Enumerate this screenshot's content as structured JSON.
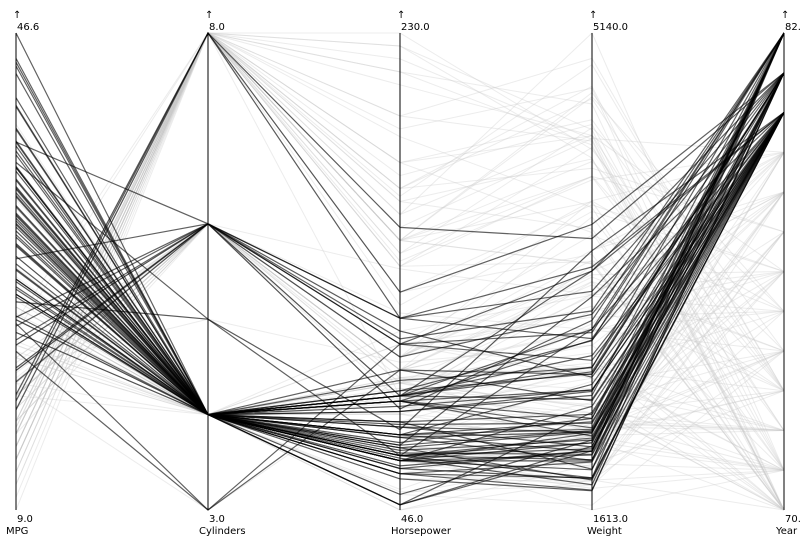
{
  "chart_data": {
    "type": "parallel-coordinates",
    "axes": [
      {
        "name": "MPG",
        "min": 9.0,
        "max": 46.6,
        "min_label": "9.0",
        "max_label": "46.6",
        "arrow": "↑"
      },
      {
        "name": "Cylinders",
        "min": 3.0,
        "max": 8.0,
        "min_label": "3.0",
        "max_label": "8.0",
        "arrow": "↑"
      },
      {
        "name": "Horsepower",
        "min": 46.0,
        "max": 230.0,
        "min_label": "46.0",
        "max_label": "230.0",
        "arrow": "↑"
      },
      {
        "name": "Weight",
        "min": 1613.0,
        "max": 5140.0,
        "min_label": "1613.0",
        "max_label": "5140.0",
        "arrow": "↑"
      },
      {
        "name": "Year",
        "min": 70,
        "max": 82,
        "min_label": "70.",
        "max_label": "82.",
        "arrow": "↑"
      }
    ],
    "highlight_color": "#000000",
    "context_color": "#c8c8c8",
    "highlighted": [
      [
        44.0,
        4,
        52,
        2130,
        82
      ],
      [
        38.0,
        4,
        67,
        2110,
        82
      ],
      [
        36.0,
        4,
        74,
        1980,
        82
      ],
      [
        34.0,
        4,
        70,
        2190,
        82
      ],
      [
        32.0,
        4,
        60,
        1850,
        82
      ],
      [
        31.0,
        4,
        88,
        2290,
        82
      ],
      [
        28.0,
        4,
        84,
        2460,
        82
      ],
      [
        27.0,
        4,
        90,
        2950,
        82
      ],
      [
        26.0,
        4,
        96,
        2665,
        82
      ],
      [
        24.0,
        4,
        92,
        2865,
        82
      ],
      [
        22.0,
        6,
        110,
        2925,
        82
      ],
      [
        20.0,
        6,
        112,
        3085,
        82
      ],
      [
        38.0,
        6,
        85,
        3015,
        82
      ],
      [
        34.5,
        4,
        78,
        2080,
        82
      ],
      [
        29.0,
        4,
        65,
        1910,
        82
      ],
      [
        37.0,
        4,
        68,
        2025,
        82
      ],
      [
        31.5,
        4,
        75,
        2045,
        82
      ],
      [
        33.0,
        4,
        88,
        2220,
        82
      ],
      [
        41.5,
        4,
        48,
        2050,
        82
      ],
      [
        30.5,
        4,
        63,
        2051,
        82
      ],
      [
        46.6,
        4,
        65,
        2110,
        81
      ],
      [
        40.8,
        4,
        65,
        2180,
        81
      ],
      [
        39.1,
        4,
        58,
        1755,
        81
      ],
      [
        37.7,
        4,
        62,
        2050,
        81
      ],
      [
        35.1,
        4,
        60,
        1760,
        81
      ],
      [
        34.4,
        4,
        65,
        1975,
        81
      ],
      [
        32.9,
        4,
        100,
        2615,
        81
      ],
      [
        31.6,
        4,
        74,
        2190,
        81
      ],
      [
        30.0,
        4,
        67,
        1985,
        81
      ],
      [
        28.4,
        4,
        90,
        2670,
        81
      ],
      [
        27.2,
        4,
        84,
        2490,
        81
      ],
      [
        26.6,
        4,
        90,
        2635,
        81
      ],
      [
        25.8,
        4,
        92,
        2620,
        81
      ],
      [
        24.2,
        6,
        120,
        3230,
        81
      ],
      [
        23.5,
        6,
        110,
        3380,
        81
      ],
      [
        22.4,
        6,
        105,
        3060,
        81
      ],
      [
        20.2,
        6,
        120,
        2880,
        81
      ],
      [
        17.6,
        8,
        130,
        3725,
        81
      ],
      [
        16.9,
        8,
        155,
        3620,
        81
      ],
      [
        33.7,
        4,
        75,
        2210,
        81
      ],
      [
        32.4,
        4,
        72,
        2290,
        81
      ],
      [
        36.1,
        4,
        66,
        1800,
        81
      ],
      [
        44.3,
        4,
        48,
        2085,
        80
      ],
      [
        43.4,
        4,
        48,
        2335,
        80
      ],
      [
        44.6,
        4,
        67,
        1850,
        80
      ],
      [
        40.9,
        4,
        70,
        1835,
        80
      ],
      [
        37.3,
        4,
        69,
        2130,
        80
      ],
      [
        36.4,
        5,
        67,
        2950,
        80
      ],
      [
        35.7,
        4,
        80,
        1915,
        80
      ],
      [
        34.3,
        4,
        78,
        2188,
        80
      ],
      [
        33.8,
        4,
        67,
        2145,
        80
      ],
      [
        32.3,
        4,
        67,
        2065,
        80
      ],
      [
        31.8,
        4,
        65,
        2020,
        80
      ],
      [
        30.7,
        4,
        71,
        2200,
        80
      ],
      [
        29.8,
        4,
        62,
        1845,
        80
      ],
      [
        28.8,
        6,
        115,
        2595,
        80
      ],
      [
        27.9,
        4,
        80,
        2320,
        80
      ],
      [
        26.4,
        4,
        88,
        2870,
        80
      ],
      [
        25.4,
        5,
        77,
        3530,
        80
      ],
      [
        24.3,
        4,
        90,
        2430,
        80
      ],
      [
        23.7,
        3,
        100,
        2420,
        80
      ],
      [
        23.0,
        4,
        90,
        2755,
        80
      ],
      [
        21.5,
        3,
        110,
        2720,
        80
      ],
      [
        19.1,
        6,
        90,
        3381,
        80
      ],
      [
        32.2,
        4,
        75,
        2265,
        80
      ],
      [
        29.9,
        4,
        65,
        2380,
        80
      ],
      [
        27.2,
        4,
        71,
        3190,
        80
      ],
      [
        38.1,
        4,
        60,
        1968,
        80
      ],
      [
        35.0,
        4,
        88,
        2500,
        80
      ],
      [
        31.3,
        4,
        75,
        2542,
        80
      ],
      [
        39.0,
        4,
        86,
        2500,
        80
      ],
      [
        18.1,
        8,
        120,
        3410,
        80
      ],
      [
        26.0,
        4,
        79,
        2255,
        80
      ],
      [
        36.0,
        4,
        88,
        2160,
        80
      ]
    ],
    "context": [
      [
        18,
        8,
        130,
        3504,
        70
      ],
      [
        15,
        8,
        165,
        3693,
        70
      ],
      [
        18,
        8,
        150,
        3436,
        70
      ],
      [
        16,
        8,
        150,
        3433,
        70
      ],
      [
        17,
        8,
        140,
        3449,
        70
      ],
      [
        15,
        8,
        198,
        4341,
        70
      ],
      [
        14,
        8,
        220,
        4354,
        70
      ],
      [
        14,
        8,
        215,
        4312,
        70
      ],
      [
        14,
        8,
        225,
        4425,
        70
      ],
      [
        15,
        8,
        190,
        3850,
        70
      ],
      [
        24,
        4,
        95,
        2372,
        70
      ],
      [
        22,
        6,
        95,
        2833,
        70
      ],
      [
        18,
        6,
        97,
        2774,
        70
      ],
      [
        21,
        6,
        85,
        2587,
        70
      ],
      [
        27,
        4,
        88,
        2130,
        70
      ],
      [
        26,
        4,
        46,
        1835,
        70
      ],
      [
        25,
        4,
        87,
        2672,
        70
      ],
      [
        24,
        4,
        90,
        2430,
        70
      ],
      [
        25,
        4,
        95,
        2375,
        70
      ],
      [
        10,
        8,
        215,
        4615,
        70
      ],
      [
        9,
        8,
        193,
        4732,
        70
      ],
      [
        11,
        8,
        180,
        3664,
        70
      ],
      [
        13,
        8,
        170,
        4746,
        71
      ],
      [
        12,
        8,
        160,
        5140,
        71
      ],
      [
        14,
        8,
        165,
        4209,
        71
      ],
      [
        19,
        6,
        100,
        2634,
        71
      ],
      [
        18,
        6,
        88,
        3302,
        71
      ],
      [
        28,
        4,
        90,
        2123,
        71
      ],
      [
        30,
        4,
        70,
        2074,
        71
      ],
      [
        31,
        4,
        65,
        1773,
        71
      ],
      [
        35,
        4,
        69,
        1613,
        71
      ],
      [
        27,
        4,
        60,
        1834,
        71
      ],
      [
        26,
        4,
        70,
        1955,
        71
      ],
      [
        25,
        4,
        86,
        2278,
        71
      ],
      [
        23,
        4,
        86,
        2158,
        71
      ],
      [
        20,
        6,
        90,
        2648,
        71
      ],
      [
        15,
        8,
        150,
        3892,
        71
      ],
      [
        16,
        6,
        100,
        3781,
        71
      ],
      [
        13,
        8,
        175,
        4464,
        71
      ],
      [
        22,
        4,
        72,
        2408,
        71
      ],
      [
        13,
        8,
        140,
        4294,
        72
      ],
      [
        14,
        8,
        150,
        4077,
        72
      ],
      [
        13,
        8,
        160,
        4385,
        72
      ],
      [
        24,
        4,
        95,
        2228,
        72
      ],
      [
        22,
        4,
        80,
        2164,
        72
      ],
      [
        21,
        4,
        110,
        2587,
        72
      ],
      [
        28,
        4,
        92,
        2288,
        72
      ],
      [
        26,
        4,
        95,
        2700,
        72
      ],
      [
        24,
        4,
        97,
        2506,
        72
      ],
      [
        19,
        3,
        97,
        2330,
        72
      ],
      [
        18,
        4,
        90,
        2264,
        72
      ],
      [
        23,
        4,
        54,
        2254,
        72
      ],
      [
        12,
        8,
        167,
        4906,
        73
      ],
      [
        13,
        8,
        180,
        4499,
        73
      ],
      [
        14,
        8,
        170,
        4654,
        73
      ],
      [
        15,
        8,
        145,
        4082,
        73
      ],
      [
        18,
        6,
        105,
        3121,
        73
      ],
      [
        16,
        6,
        100,
        3278,
        73
      ],
      [
        20,
        6,
        105,
        3459,
        73
      ],
      [
        21,
        4,
        90,
        2327,
        73
      ],
      [
        26,
        4,
        46,
        1950,
        73
      ],
      [
        29,
        4,
        75,
        2171,
        73
      ],
      [
        19,
        4,
        110,
        2660,
        73
      ],
      [
        24,
        4,
        75,
        2158,
        73
      ],
      [
        31,
        4,
        52,
        1649,
        74
      ],
      [
        32,
        4,
        65,
        1836,
        74
      ],
      [
        28,
        4,
        75,
        2219,
        74
      ],
      [
        24,
        4,
        96,
        2189,
        74
      ],
      [
        26,
        4,
        93,
        2391,
        74
      ],
      [
        19,
        6,
        100,
        3302,
        74
      ],
      [
        16,
        8,
        150,
        4190,
        74
      ],
      [
        14,
        8,
        150,
        4699,
        74
      ],
      [
        15,
        6,
        100,
        3336,
        74
      ],
      [
        25,
        4,
        75,
        2542,
        74
      ],
      [
        16,
        6,
        105,
        3897,
        75
      ],
      [
        18,
        6,
        110,
        3645,
        75
      ],
      [
        15,
        8,
        145,
        4440,
        75
      ],
      [
        13,
        8,
        150,
        4668,
        75
      ],
      [
        29,
        4,
        83,
        2219,
        75
      ],
      [
        33,
        4,
        53,
        1795,
        75
      ],
      [
        23,
        4,
        83,
        2639,
        75
      ],
      [
        22,
        6,
        100,
        2945,
        75
      ],
      [
        20,
        6,
        110,
        3039,
        75
      ],
      [
        17,
        6,
        95,
        3193,
        75
      ],
      [
        15,
        8,
        180,
        4380,
        76
      ],
      [
        16,
        8,
        120,
        3820,
        76
      ],
      [
        29,
        4,
        62,
        1845,
        76
      ],
      [
        24.5,
        4,
        60,
        2164,
        76
      ],
      [
        29,
        4,
        70,
        1937,
        76
      ],
      [
        26,
        4,
        79,
        2255,
        76
      ],
      [
        26.5,
        4,
        72,
        2565,
        76
      ],
      [
        20,
        6,
        90,
        3085,
        76
      ],
      [
        18,
        6,
        115,
        3202,
        76
      ],
      [
        22,
        6,
        105,
        3353,
        76
      ],
      [
        13,
        8,
        130,
        3870,
        76
      ],
      [
        31.5,
        4,
        68,
        2045,
        77
      ],
      [
        30,
        4,
        80,
        2155,
        77
      ],
      [
        36,
        4,
        58,
        1825,
        77
      ],
      [
        25.5,
        4,
        89,
        2755,
        77
      ],
      [
        33.5,
        4,
        83,
        2075,
        77
      ],
      [
        17.5,
        8,
        140,
        4080,
        77
      ],
      [
        15.5,
        8,
        170,
        4140,
        77
      ],
      [
        19.4,
        6,
        90,
        3210,
        78
      ],
      [
        20.2,
        6,
        85,
        2965,
        78
      ],
      [
        19.2,
        6,
        105,
        3535,
        78
      ],
      [
        20.6,
        6,
        105,
        3380,
        78
      ],
      [
        30,
        4,
        68,
        2155,
        78
      ],
      [
        30.5,
        4,
        63,
        2051,
        78
      ],
      [
        32.8,
        4,
        52,
        1985,
        78
      ],
      [
        39.4,
        4,
        70,
        2070,
        78
      ],
      [
        36.1,
        4,
        66,
        1800,
        78
      ],
      [
        18.1,
        6,
        139,
        3205,
        78
      ],
      [
        21.5,
        4,
        115,
        2600,
        78
      ],
      [
        31.9,
        4,
        71,
        1925,
        79
      ],
      [
        34.1,
        4,
        65,
        1975,
        79
      ],
      [
        35.7,
        4,
        80,
        1915,
        79
      ],
      [
        27.4,
        4,
        80,
        2670,
        79
      ],
      [
        25.4,
        5,
        77,
        3530,
        79
      ],
      [
        23.0,
        8,
        125,
        3900,
        79
      ],
      [
        27.2,
        4,
        71,
        3190,
        79
      ],
      [
        23.9,
        8,
        90,
        3420,
        79
      ],
      [
        34.2,
        4,
        70,
        2200,
        79
      ],
      [
        16.9,
        8,
        155,
        4360,
        79
      ],
      [
        15.5,
        8,
        142,
        4054,
        79
      ],
      [
        19.8,
        6,
        85,
        2990,
        79
      ],
      [
        22.3,
        4,
        88,
        2890,
        79
      ],
      [
        20.3,
        5,
        103,
        2830,
        78
      ],
      [
        28.1,
        4,
        60,
        1800,
        77
      ],
      [
        12,
        8,
        198,
        4952,
        73
      ],
      [
        11,
        8,
        210,
        4382,
        70
      ],
      [
        16,
        8,
        230,
        4278,
        73
      ],
      [
        13,
        8,
        225,
        4215,
        70
      ],
      [
        17,
        6,
        100,
        2930,
        76
      ],
      [
        21,
        6,
        122,
        2945,
        74
      ],
      [
        28,
        4,
        75,
        2125,
        74
      ],
      [
        25,
        4,
        97,
        2671,
        78
      ]
    ]
  }
}
